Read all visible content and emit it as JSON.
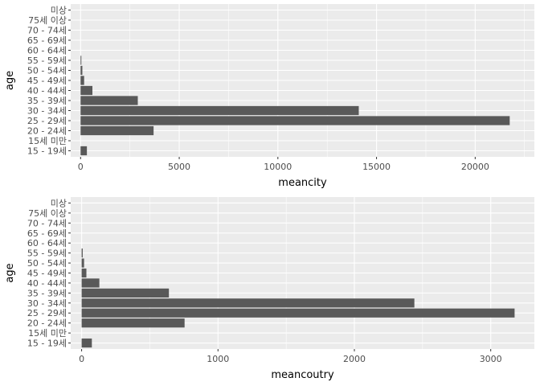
{
  "chart_data": [
    {
      "type": "bar",
      "orientation": "horizontal",
      "categories": [
        "15 - 19세",
        "15세 미만",
        "20 - 24세",
        "25 - 29세",
        "30 - 34세",
        "35 - 39세",
        "40 - 44세",
        "45 - 49세",
        "50 - 54세",
        "55 - 59세",
        "60 - 64세",
        "65 - 69세",
        "70 - 74세",
        "75세 이상",
        "미상"
      ],
      "values": [
        320,
        0,
        3700,
        21750,
        14100,
        2900,
        600,
        180,
        90,
        40,
        0,
        0,
        0,
        0,
        0
      ],
      "xlabel": "meancity",
      "ylabel": "age",
      "xlim": [
        -500,
        23000
      ],
      "xticks": [
        0,
        5000,
        10000,
        15000,
        20000
      ],
      "xtick_labels": [
        "0",
        "5000",
        "10000",
        "15000",
        "20000"
      ],
      "grid": true,
      "panel_background": "#EBEBEB",
      "grid_color": "#FFFFFF",
      "bar_color": "#595959"
    },
    {
      "type": "bar",
      "orientation": "horizontal",
      "categories": [
        "15 - 19세",
        "15세 미만",
        "20 - 24세",
        "25 - 29세",
        "30 - 34세",
        "35 - 39세",
        "40 - 44세",
        "45 - 49세",
        "50 - 54세",
        "55 - 59세",
        "60 - 64세",
        "65 - 69세",
        "70 - 74세",
        "75세 이상",
        "미상"
      ],
      "values": [
        75,
        0,
        755,
        3175,
        2440,
        640,
        130,
        35,
        18,
        8,
        0,
        0,
        0,
        0,
        0
      ],
      "xlabel": "meancoutry",
      "ylabel": "age",
      "xlim": [
        -80,
        3320
      ],
      "xticks": [
        0,
        1000,
        2000,
        3000
      ],
      "xtick_labels": [
        "0",
        "1000",
        "2000",
        "3000"
      ],
      "grid": true,
      "panel_background": "#EBEBEB",
      "grid_color": "#FFFFFF",
      "bar_color": "#595959"
    }
  ]
}
